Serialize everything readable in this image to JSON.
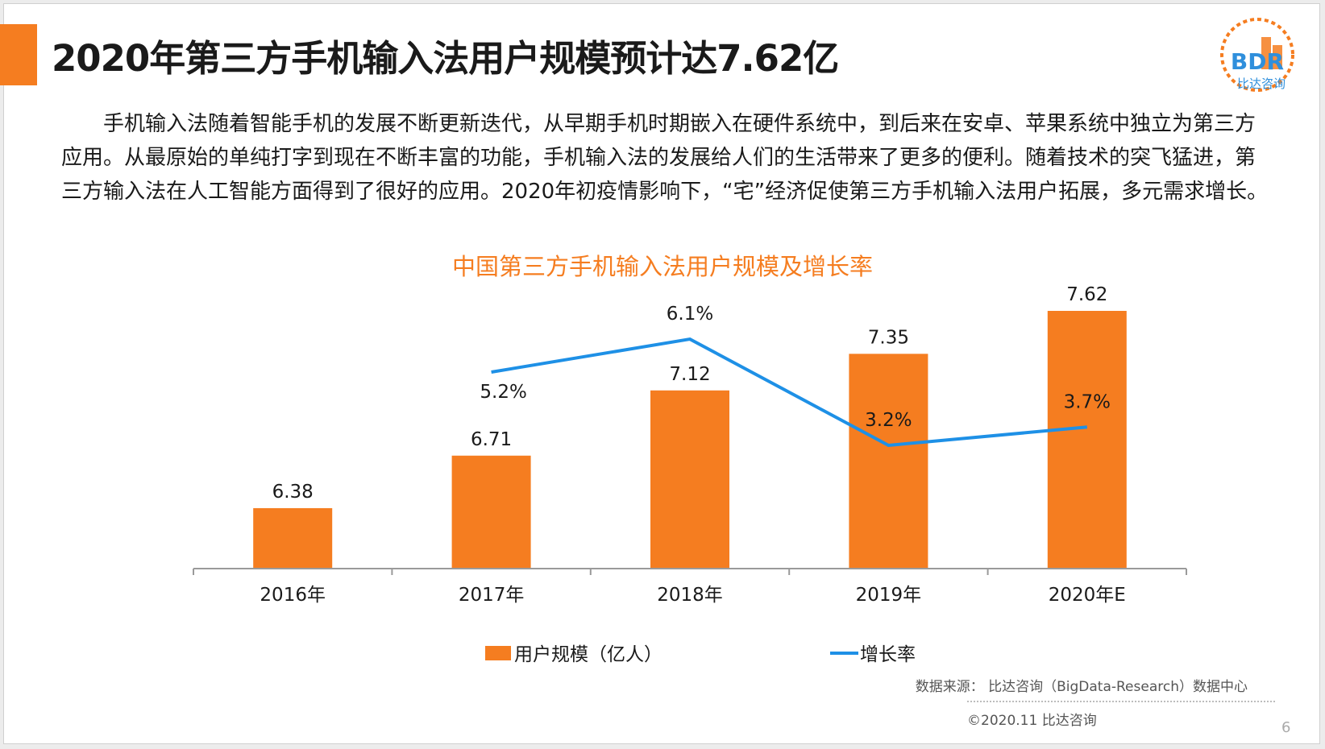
{
  "header": {
    "title": "2020年第三方手机输入法用户规模预计达7.62亿",
    "accent_color": "#f57d20"
  },
  "logo": {
    "text": "BDR",
    "subtext": "比达咨询",
    "icon": "bdr-logo-icon"
  },
  "intro": {
    "text": "手机输入法随着智能手机的发展不断更新迭代，从早期手机时期嵌入在硬件系统中，到后来在安卓、苹果系统中独立为第三方应用。从最原始的单纯打字到现在不断丰富的功能，手机输入法的发展给人们的生活带来了更多的便利。随着技术的突飞猛进，第三方输入法在人工智能方面得到了很好的应用。2020年初疫情影响下，“宅”经济促使第三方手机输入法用户拓展，多元需求增长。"
  },
  "chart_data": {
    "type": "bar",
    "title": "中国第三方手机输入法用户规模及增长率",
    "categories": [
      "2016年",
      "2017年",
      "2018年",
      "2019年",
      "2020年E"
    ],
    "series": [
      {
        "name": "用户规模（亿人）",
        "type": "bar",
        "color": "#f57d20",
        "values": [
          6.38,
          6.71,
          7.12,
          7.35,
          7.62
        ],
        "labels": [
          "6.38",
          "6.71",
          "7.12",
          "7.35",
          "7.62"
        ]
      },
      {
        "name": "增长率",
        "type": "line",
        "color": "#1e90e6",
        "values": [
          null,
          5.2,
          6.1,
          3.2,
          3.7
        ],
        "labels": [
          "",
          "5.2%",
          "6.1%",
          "3.2%",
          "3.7%"
        ]
      }
    ],
    "legend_position": "bottom",
    "grid": false
  },
  "footer": {
    "source": "数据来源：  比达咨询（BigData-Research）数据中心",
    "copyright": "©2020.11   比达咨询",
    "page_number": "6"
  }
}
